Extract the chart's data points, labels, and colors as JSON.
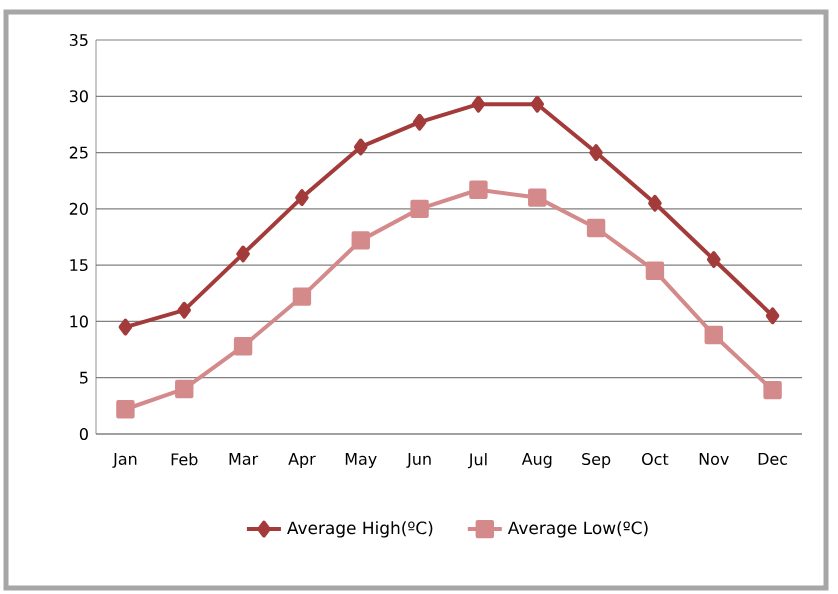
{
  "chart_data": {
    "type": "line",
    "categories": [
      "Jan",
      "Feb",
      "Mar",
      "Apr",
      "May",
      "Jun",
      "Jul",
      "Aug",
      "Sep",
      "Oct",
      "Nov",
      "Dec"
    ],
    "series": [
      {
        "name": "Average High(ºC)",
        "color": "#a33b3b",
        "marker": "diamond",
        "values": [
          9.5,
          11,
          16,
          21,
          25.5,
          27.7,
          29.3,
          29.3,
          25,
          20.5,
          15.5,
          10.5
        ]
      },
      {
        "name": "Average Low(ºC)",
        "color": "#d48a8a",
        "marker": "square",
        "values": [
          2.2,
          4,
          7.8,
          12.2,
          17.2,
          20,
          21.7,
          21,
          18.3,
          14.5,
          8.8,
          3.9
        ]
      }
    ],
    "ylim": [
      0,
      35
    ],
    "yticks": [
      0,
      5,
      10,
      15,
      20,
      25,
      30,
      35
    ],
    "grid": "y",
    "legend": "bottom",
    "line_style": "solid"
  }
}
